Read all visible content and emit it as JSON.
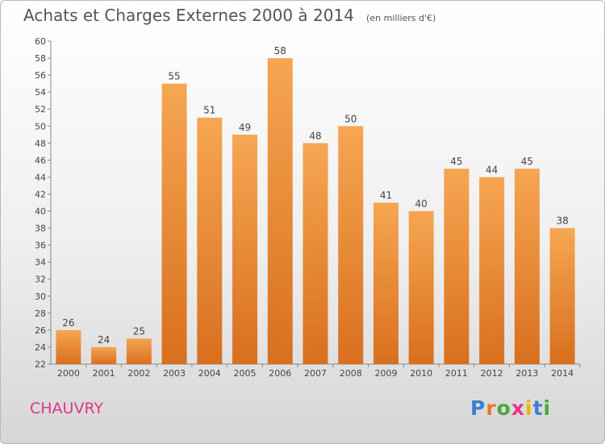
{
  "title": "Achats et Charges Externes 2000 à 2014",
  "subtitle": "(en milliers d'€)",
  "commune": "CHAUVRY",
  "logo": {
    "text": "Proxiti",
    "letter_colors": [
      "#3d7fd4",
      "#e8762d",
      "#4aa83f",
      "#e0348a",
      "#f0b400",
      "#3d7fd4",
      "#4aa83f"
    ]
  },
  "chart_data": {
    "type": "bar",
    "categories": [
      "2000",
      "2001",
      "2002",
      "2003",
      "2004",
      "2005",
      "2006",
      "2007",
      "2008",
      "2009",
      "2010",
      "2011",
      "2012",
      "2013",
      "2014"
    ],
    "values": [
      26,
      24,
      25,
      55,
      51,
      49,
      58,
      48,
      50,
      41,
      40,
      45,
      44,
      45,
      38
    ],
    "ylim": [
      22,
      60
    ],
    "yticks": [
      22,
      24,
      26,
      28,
      30,
      32,
      34,
      36,
      38,
      40,
      42,
      44,
      46,
      48,
      50,
      52,
      54,
      56,
      58,
      60
    ],
    "grid": false,
    "bar_color_top": "#f6a652",
    "bar_color_bottom": "#d86f1e"
  }
}
